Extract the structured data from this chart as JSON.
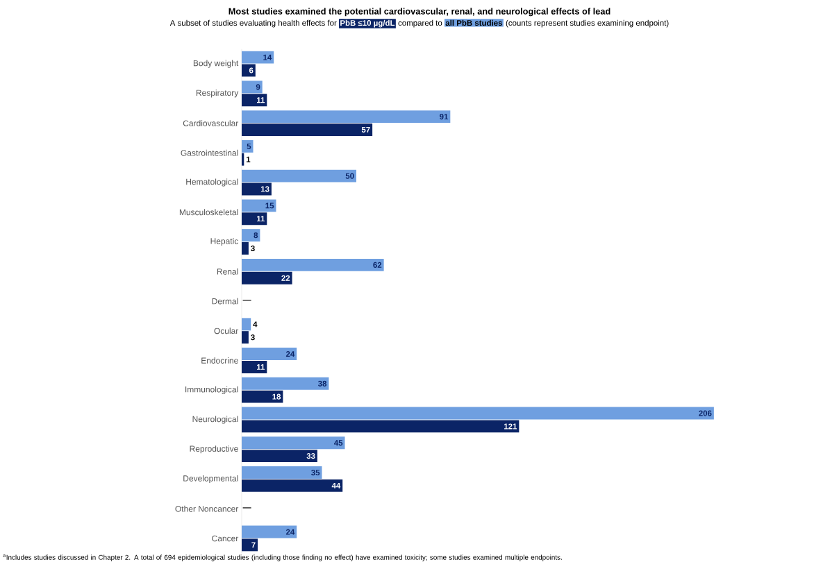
{
  "chart_data": {
    "type": "bar",
    "orientation": "horizontal",
    "title": "Most studies examined the potential cardiovascular, renal, and neurological effects of lead",
    "subtitle": "A subset of studies evaluating health effects for",
    "categories": [
      "Body weight",
      "Respiratory",
      "Cardiovascular",
      "Gastrointestinal",
      "Hematological",
      "Musculoskeletal",
      "Hepatic",
      "Renal",
      "Dermal",
      "Ocular",
      "Endocrine",
      "Immunological",
      "Neurological",
      "Reproductive",
      "Developmental",
      "Other Noncancer",
      "Cancer"
    ],
    "series": [
      {
        "name": "PbB ≤10 µg/dL",
        "color": "#0b2466",
        "values": [
          6,
          11,
          57,
          1,
          13,
          11,
          3,
          22,
          null,
          3,
          11,
          18,
          121,
          33,
          44,
          null,
          7
        ],
        "value_labels": [
          "6",
          "11",
          "57",
          "1",
          "13",
          "11",
          "3",
          "22",
          "—",
          "3",
          "11",
          "18",
          "121",
          "33",
          "44",
          "—",
          "7"
        ]
      },
      {
        "name": "all PbB studies",
        "color": "#6f9fe0",
        "values": [
          14,
          9,
          91,
          5,
          50,
          15,
          8,
          62,
          null,
          4,
          24,
          38,
          206,
          45,
          35,
          null,
          24
        ],
        "value_labels": [
          "14",
          "9",
          "91",
          "5",
          "50",
          "15",
          "8",
          "62",
          null,
          "4",
          "24",
          "38",
          "206",
          "45",
          "35",
          null,
          "24"
        ]
      }
    ],
    "legend": "top",
    "annotations": [
      "compared to",
      "(counts represent studies examining endpoint)",
      "$^{a}$Includes studies discussed in Chapter 2.  A total of 694 epidemiological studies (including those finding no effect) have examined toxicity; some studies examined multiple endpoints."
    ]
  }
}
